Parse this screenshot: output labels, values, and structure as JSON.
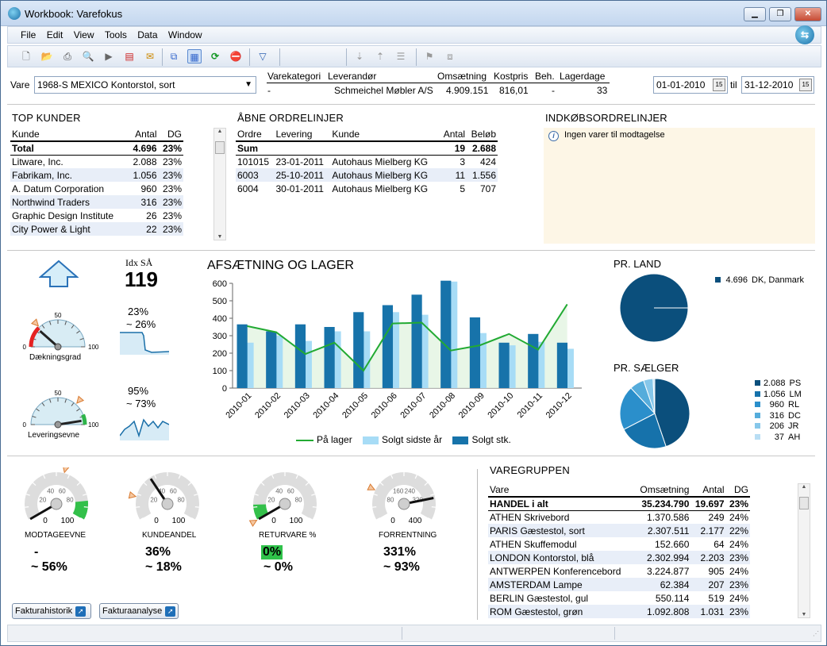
{
  "window": {
    "title": "Workbook: Varefokus"
  },
  "menu": [
    "File",
    "Edit",
    "View",
    "Tools",
    "Data",
    "Window"
  ],
  "header": {
    "vare_label": "Vare",
    "vare_value": "1968-S MEXICO Kontorstol, sort",
    "cols": [
      "Varekategori",
      "Leverandør",
      "Omsætning",
      "Kostpris",
      "Beh.",
      "Lagerdage"
    ],
    "vals": [
      "-",
      "Schmeichel Møbler A/S",
      "4.909.151",
      "816,01",
      "-",
      "33"
    ],
    "date_from": "01-01-2010",
    "til": "til",
    "date_to": "31-12-2010"
  },
  "top_kunder": {
    "title": "TOP KUNDER",
    "head": [
      "Kunde",
      "Antal",
      "DG"
    ],
    "total": [
      "Total",
      "4.696",
      "23%"
    ],
    "rows": [
      [
        "Litware, Inc.",
        "2.088",
        "23%"
      ],
      [
        "Fabrikam, Inc.",
        "1.056",
        "23%"
      ],
      [
        "A. Datum Corporation",
        "960",
        "23%"
      ],
      [
        "Northwind Traders",
        "316",
        "23%"
      ],
      [
        "Graphic Design Institute",
        "26",
        "23%"
      ],
      [
        "City Power & Light",
        "22",
        "23%"
      ]
    ]
  },
  "aabne": {
    "title": "ÅBNE ORDRELINJER",
    "head": [
      "Ordre",
      "Levering",
      "Kunde",
      "Antal",
      "Beløb"
    ],
    "sum": [
      "Sum",
      "",
      "",
      "19",
      "2.688"
    ],
    "rows": [
      [
        "101015",
        "23-01-2011",
        "Autohaus Mielberg KG",
        "3",
        "424"
      ],
      [
        "6003",
        "25-10-2011",
        "Autohaus Mielberg KG",
        "11",
        "1.556"
      ],
      [
        "6004",
        "30-01-2011",
        "Autohaus Mielberg KG",
        "5",
        "707"
      ]
    ]
  },
  "indkob": {
    "title": "INDKØBSORDRELINJER",
    "msg": "Ingen varer til modtagelse"
  },
  "idx": {
    "label": "Idx SÅ",
    "value": "119"
  },
  "gauges_top": [
    {
      "name": "Dækningsgrad",
      "min": "0",
      "mid": "50",
      "max": "100",
      "pct": "23%",
      "sub": "~ 26%",
      "value": 23,
      "target": 26
    },
    {
      "name": "Leveringsevne",
      "min": "0",
      "mid": "50",
      "max": "100",
      "pct": "95%",
      "sub": "~ 73%",
      "value": 95,
      "target": 73
    }
  ],
  "chart_data": [
    {
      "type": "bar",
      "title": "AFSÆTNING OG LAGER",
      "categories": [
        "2010-01",
        "2010-02",
        "2010-03",
        "2010-04",
        "2010-05",
        "2010-06",
        "2010-07",
        "2010-08",
        "2010-09",
        "2010-10",
        "2010-11",
        "2010-12"
      ],
      "ylim": [
        0,
        600
      ],
      "yticks": [
        "0",
        "100",
        "200",
        "300",
        "400",
        "500",
        "600"
      ],
      "series": [
        {
          "name": "Solgt stk.",
          "type": "bar",
          "color": "#1773aa",
          "values": [
            365,
            325,
            365,
            350,
            435,
            475,
            535,
            615,
            405,
            260,
            310,
            260
          ]
        },
        {
          "name": "Solgt sidste år",
          "type": "bar",
          "color": "#a7dcf6",
          "values": [
            260,
            300,
            270,
            325,
            325,
            435,
            420,
            610,
            315,
            245,
            265,
            225
          ]
        },
        {
          "name": "På lager",
          "type": "line",
          "color": "#22aa33",
          "values": [
            355,
            320,
            195,
            260,
            100,
            370,
            375,
            215,
            245,
            310,
            220,
            480
          ]
        }
      ],
      "legend": [
        "På lager",
        "Solgt sidste år",
        "Solgt stk."
      ]
    },
    {
      "type": "pie",
      "title": "PR. LAND",
      "slices": [
        {
          "label": "DK, Danmark",
          "value": 4696,
          "display": "4.696",
          "color": "#0b4f7c"
        }
      ]
    },
    {
      "type": "pie",
      "title": "PR. SÆLGER",
      "slices": [
        {
          "label": "PS",
          "value": 2088,
          "display": "2.088",
          "color": "#0b4f7c"
        },
        {
          "label": "LM",
          "value": 1056,
          "display": "1.056",
          "color": "#1672ab"
        },
        {
          "label": "RL",
          "value": 960,
          "display": "960",
          "color": "#2b8fcb"
        },
        {
          "label": "DC",
          "value": 316,
          "display": "316",
          "color": "#55acdb"
        },
        {
          "label": "JR",
          "value": 206,
          "display": "206",
          "color": "#86c7ea"
        },
        {
          "label": "AH",
          "value": 37,
          "display": "37",
          "color": "#b9def4"
        }
      ]
    }
  ],
  "gauges_bottom": [
    {
      "name": "MODTAGEEVNE",
      "a": "-",
      "b": "~ 56%",
      "value": 0,
      "target": 56,
      "ticks": [
        "0",
        "20",
        "40",
        "60",
        "80",
        "100"
      ]
    },
    {
      "name": "KUNDEANDEL",
      "a": "36%",
      "b": "~ 18%",
      "value": 36,
      "target": 18,
      "ticks": [
        "0",
        "20",
        "40",
        "60",
        "80",
        "100"
      ]
    },
    {
      "name": "RETURVARE %",
      "a": "0%",
      "b": "~ 0%",
      "value": 0,
      "target": 0,
      "ticks": [
        "0",
        "20",
        "40",
        "60",
        "80",
        "100"
      ]
    },
    {
      "name": "FORRENTNING",
      "a": "331%",
      "b": "~ 93%",
      "value": 331,
      "target": 93,
      "ticks": [
        "0",
        "80",
        "160",
        "240",
        "320",
        "400"
      ]
    }
  ],
  "varegruppen": {
    "title": "VAREGRUPPEN",
    "head": [
      "Vare",
      "Omsætning",
      "Antal",
      "DG"
    ],
    "total": [
      "HANDEL i alt",
      "35.234.790",
      "19.697",
      "23%"
    ],
    "rows": [
      [
        "ATHEN Skrivebord",
        "1.370.586",
        "249",
        "24%"
      ],
      [
        "PARIS Gæstestol, sort",
        "2.307.511",
        "2.177",
        "22%"
      ],
      [
        "ATHEN Skuffemodul",
        "152.660",
        "64",
        "24%"
      ],
      [
        "LONDON Kontorstol, blå",
        "2.302.994",
        "2.203",
        "23%"
      ],
      [
        "ANTWERPEN Konferencebord",
        "3.224.877",
        "905",
        "24%"
      ],
      [
        "AMSTERDAM Lampe",
        "62.384",
        "207",
        "23%"
      ],
      [
        "BERLIN Gæstestol, gul",
        "550.114",
        "519",
        "24%"
      ],
      [
        "ROM Gæstestol, grøn",
        "1.092.808",
        "1.031",
        "23%"
      ]
    ]
  },
  "buttons": {
    "fakturahistorik": "Fakturahistorik",
    "fakturaanalyse": "Fakturaanalyse"
  }
}
